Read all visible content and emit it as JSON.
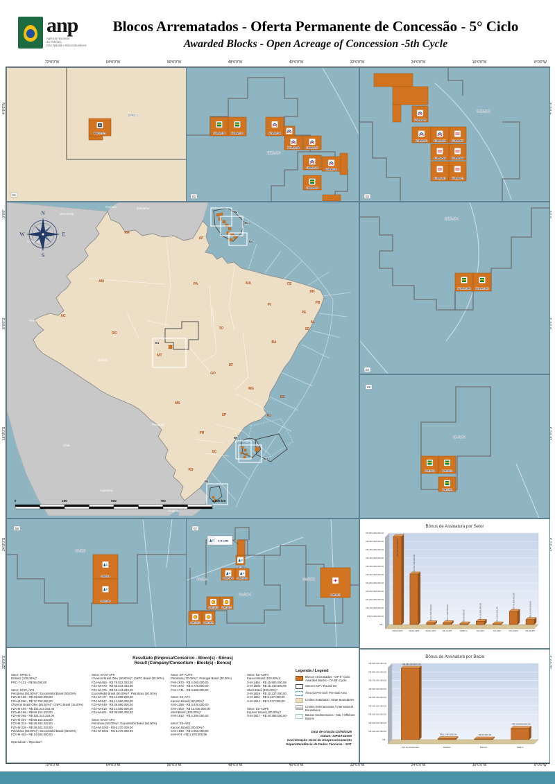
{
  "header": {
    "logo_text": "anp",
    "logo_subtext": [
      "Agência Nacional",
      "do Petróleo,",
      "Gás Natural e Biocombustíveis"
    ],
    "title": "Blocos Arrematados - Oferta Permanente de Concessão - 5° Ciclo",
    "subtitle": "Awarded Blocks - Open Acreage of Concession -5th Cycle"
  },
  "frame": {
    "longitudes": [
      "72°0'0\"W",
      "64°0'0\"W",
      "56°0'0\"W",
      "48°0'0\"W",
      "40°0'0\"W",
      "32°0'0\"W",
      "24°0'0\"W",
      "16°0'0\"W",
      "8°0'0\"W"
    ],
    "latitudes": [
      "4°0'0\"N",
      "0°0'0\"",
      "8°0'0\"S",
      "16°0'0\"S",
      "24°0'0\"S",
      "32°0'0\"S"
    ]
  },
  "panels": {
    "b1": {
      "ref": "B1",
      "sectors": [
        "SPRC-L"
      ],
      "blocks": [
        {
          "name": "PRC-T-121",
          "icon": "drillanz"
        }
      ]
    },
    "b2": {
      "ref": "B2",
      "sectors": [
        "SFZA-AP3"
      ],
      "blocks": [
        {
          "name": "FZA-M-188",
          "icon": "petrobras"
        },
        {
          "name": "FZA-M-190",
          "icon": "petrobras"
        },
        {
          "name": "FZA-M-194",
          "icon": "chevron"
        },
        {
          "name": "FZA-M-196",
          "icon": "chevron"
        },
        {
          "name": "FZA-M-265",
          "icon": "chevron"
        },
        {
          "name": "FZA-M-267",
          "icon": "chevron"
        },
        {
          "name": "FZA-M-334",
          "icon": "chevron"
        },
        {
          "name": "FZA-M-336",
          "icon": "chevron"
        },
        {
          "name": "FZA-M-403",
          "icon": "petrobras"
        }
      ]
    },
    "b3": {
      "ref": "B3",
      "sectors": [
        "SFZA-AP5"
      ],
      "blocks": [
        {
          "name": "FZA-M-465",
          "icon": "chevron"
        },
        {
          "name": "FZA-M-473",
          "icon": "chevron"
        },
        {
          "name": "FZA-M-475",
          "icon": "chevron"
        },
        {
          "name": "FZA-M-477",
          "icon": "exxon"
        },
        {
          "name": "FZA-M-547",
          "icon": "exxon"
        },
        {
          "name": "FZA-M-549",
          "icon": "exxon"
        },
        {
          "name": "FZA-M-619",
          "icon": "exxon"
        },
        {
          "name": "FZA-M-621",
          "icon": "exxon"
        }
      ]
    },
    "b4": {
      "ref": "B4",
      "sectors": [
        "SFZA-AP4"
      ],
      "blocks": [
        {
          "name": "FZA-M-1040",
          "icon": "petrobras"
        },
        {
          "name": "FZA-M-1042",
          "icon": "petrobras"
        }
      ]
    },
    "b5": {
      "ref": "B5",
      "sectors": [
        "SP-AUP3"
      ],
      "blocks": [
        {
          "name": "P-M-1670",
          "icon": "petrobras"
        },
        {
          "name": "P-M-1672",
          "icon": "petrobras"
        },
        {
          "name": "P-M-1741",
          "icon": "petrobras"
        }
      ]
    },
    "b6": {
      "ref": "B6",
      "sectors": [
        "SS-AR3"
      ],
      "blocks": [
        {
          "name": "S-M-974",
          "icon": "karoon"
        },
        {
          "name": "S-M-1030",
          "icon": "karoon"
        }
      ]
    },
    "b7": {
      "ref": "B7",
      "sectors": [
        "SS-AP4",
        "SS-AUP4",
        "SS-AUP5"
      ],
      "blocks": [
        {
          "name": "S-M-1358",
          "icon": "karoon"
        },
        {
          "name": "S-M-1484",
          "icon": "karoon"
        },
        {
          "name": "S-M-1603",
          "icon": "karoon"
        },
        {
          "name": "S-M-1605",
          "icon": "karoon"
        },
        {
          "name": "S-M-1819",
          "icon": "shell"
        },
        {
          "name": "S-M-1821",
          "icon": "shell"
        },
        {
          "name": "S-M-1912",
          "icon": "shell"
        },
        {
          "name": "S-M-1914",
          "icon": "shell"
        },
        {
          "name": "S-M-1617",
          "icon": "equinor"
        }
      ]
    }
  },
  "main_map": {
    "states": [
      "RR",
      "AP",
      "AM",
      "PA",
      "MA",
      "CE",
      "RN",
      "PB",
      "PI",
      "PE",
      "AL",
      "SE",
      "BA",
      "TO",
      "AC",
      "RO",
      "MT",
      "GO",
      "DF",
      "MG",
      "ES",
      "MS",
      "SP",
      "RJ",
      "PR",
      "SC",
      "RS"
    ],
    "countries": [
      "Venezuela",
      "Guyana",
      "Suriname",
      "Colombia",
      "Peru",
      "Bolivia",
      "Paraguay",
      "Chile",
      "Argentina",
      "Uruguay"
    ],
    "scale_labels": [
      "0",
      "250",
      "500",
      "750",
      "1.000 km"
    ],
    "compass_letters": [
      "N",
      "E",
      "S",
      "W"
    ],
    "inset_refs": [
      "B1",
      "B2",
      "B3",
      "B4",
      "B5",
      "B6",
      "B7"
    ]
  },
  "results": {
    "title_pt": "Resultado (Empresa/Consórcio - Bloco(s) - Bônus)",
    "title_en": "Result (Company/Consortium - Block(s) - Bonus)",
    "columns": [
      [
        "Setor: SPRC-L",
        "Drillanz (100.00%)*",
        "PRC-T-121 -  R$ 55.000,00",
        "",
        "Setor: SFZA-AP3",
        "Petrobras (50.00%)*; ExxonMobil Brasil (50.00%)",
        "FZA-M-188 -  R$ 43.650.000,00",
        "FZA-M-190 -  R$ 72.750.000,00",
        "Chevron Brasil Óleo (85.00%)*; CNPC Brasil (15.00%)",
        "FZA-M-194 -  R$ 102.243.333,00",
        "FZA-M-196 -  R$ 68.163.333,00",
        "FZA-M-265 -  R$ 102.243.333,00",
        "FZA-M-267 -  R$ 68.163.333,00",
        "FZA-M-334 -  R$ 28.483.333,00",
        "FZA-M-336 -  R$ 28.483.333,00",
        "Petrobras (50.00%)*; ExxonMobil Brasil (50.00%)",
        "FZA-M-403 -  R$ 14.550.000,00",
        "",
        "Operadora* / Operator*"
      ],
      [
        "Setor: SFZA-AP5",
        "Chevron Brasil Óleo (50.00%)*; CNPC Brasil (50.00%)",
        "FZA-M-465 -  R$ 79.523.333,00",
        "FZA-M-473 -  R$ 58.643.333,00",
        "FZA-M-475 -  R$ 45.443.333,00",
        "ExxonMobil Brasil (50.00%)*; Petrobras (50.00%)",
        "FZA-M-477 -  R$ 13.890.000,00",
        "FZA-M-547 -  R$ 14.550.000,00",
        "FZA-M-549 -  R$ 38.880.000,00",
        "FZA-M-619 -  R$ 14.550.000,00",
        "FZA-M-621 -  R$ 38.880.000,00",
        "",
        "Setor: SFZA-AP4",
        "Petrobras (50.00%)*; ExxonMobil Brasil (50.00%)",
        "FZA-M-1040 -  R$ 5.270.000,00",
        "FZA-M-1042 -  R$ 5.270.000,00"
      ],
      [
        "Setor: SP-AUP3",
        "Petrobras (70.00%)*; Petrogal Brasil (30.00%)",
        "P-M-1670 -  R$ 4.060.000,00",
        "P-M-1672 -  R$ 3.720.000,00",
        "P-M-1741 -  R$ 3.680.000,00",
        "",
        "Setor: SS-AP4",
        "Karoon Brasil (100.00%)*",
        "S-M-1358 -  R$ 3.630.000,00",
        "S-M-1603 -  R$ 12.036.000,00",
        "Shell Brasil (100.00%)*",
        "S-M-1912 -  R$ 4.280.000,00",
        "",
        "Setor: SS-AR3",
        "Karoon Brasil (100.00%)*",
        "S-M-1030 -  R$ 2.051.000,99",
        "S-M-974  -  R$ 1.970.000,99"
      ],
      [
        "Setor: SS-AUP4",
        "Karoon Brasil (100.00%)*",
        "S-M-1484 -  R$ 45.900.000,99",
        "S-M-1605 -  R$ 16.440.000,99",
        "Shell Brasil (100.00%)*",
        "S-M-1819 -  R$ 10.237.000,00",
        "S-M-1821 -  R$ 3.427.000,00",
        "S-M-1914 -  R$ 3.377.000,00",
        "",
        "Setor: SS-AUP5",
        "Equinor Brasil (100.00%)*",
        "S-M-1617 -  R$ 30.468.000,00"
      ]
    ]
  },
  "legend": {
    "title": "Legenda / Legend",
    "items": [
      {
        "swatch": "block",
        "label": "Blocos Arrematados - OP 5° Ciclo",
        "label2": "Awarded Blocks - OA 5th Cycle"
      },
      {
        "swatch": "sector",
        "label": "Setores OP / Round OA"
      },
      {
        "swatch": "presal",
        "label": "Área do Pré-Sal / Pre-Salt Area"
      },
      {
        "swatch": "state",
        "label": "Limites Estaduais / State Boundaries"
      },
      {
        "swatch": "intl",
        "label": "Limites Internacionais / International Boundaries"
      },
      {
        "swatch": "basin",
        "label": "Bacias Sedimentares - Mar / Offshore Basins"
      }
    ]
  },
  "credits": [
    "Data de criação:23/06/2025",
    "Datum: SIRGAS2000",
    "Coordenação Geral de Geoprocessamento",
    "Superintendência de Dados Técnicos - SDT"
  ],
  "colors": {
    "awarded_block": "#d2741f",
    "ocean": "#8fb5c3",
    "land": "#ecdfc6",
    "foreign_land": "#c8c8c8",
    "footer_bar": "#4b94a8"
  },
  "chart_data": [
    {
      "type": "bar",
      "title": "Bônus de Assinatura por Setor",
      "categories": [
        "SFZA-AP3",
        "SFZA-AP5",
        "SFZA-AP4",
        "SP-AUP3",
        "SPRC-L",
        "SS-AP4",
        "SS-AR3",
        "SS-AUP4",
        "SS-AUP5"
      ],
      "values": [
        528729998,
        304359999,
        10540000,
        11460000,
        55000,
        19946000,
        4021002,
        79381002,
        30468000
      ],
      "value_labels": [
        "R$ 528.729.998,00",
        "R$ 304.359.999,00",
        "R$ 10.540.000,00",
        "R$ 11.460.000,00",
        "R$ 55.000,00",
        "R$ 19.946.000,00",
        "R$ 4.021.001,98",
        "R$ 79.381.001,98",
        "R$ 30.468.000,00"
      ],
      "xlabel": "",
      "ylabel": "",
      "ylim": [
        0,
        550000000
      ],
      "ytick_step": 50000000,
      "grid": true,
      "legend_position": "none"
    },
    {
      "type": "bar",
      "title": "Bônus de Assinatura por Bacia",
      "categories": [
        "Foz do Amazonas",
        "Pelotas",
        "Parecis",
        "Santos"
      ],
      "values": [
        843629997,
        11460000,
        55000,
        133816004
      ],
      "value_labels": [
        "R$ 843.629.997,00",
        "R$ 11.460.000,00",
        "R$ 55.000,00",
        "R$ 133.816.003,96"
      ],
      "xlabel": "",
      "ylabel": "",
      "ylim": [
        0,
        900000000
      ],
      "ytick_step": 100000000,
      "grid": true,
      "legend_position": "none"
    }
  ]
}
